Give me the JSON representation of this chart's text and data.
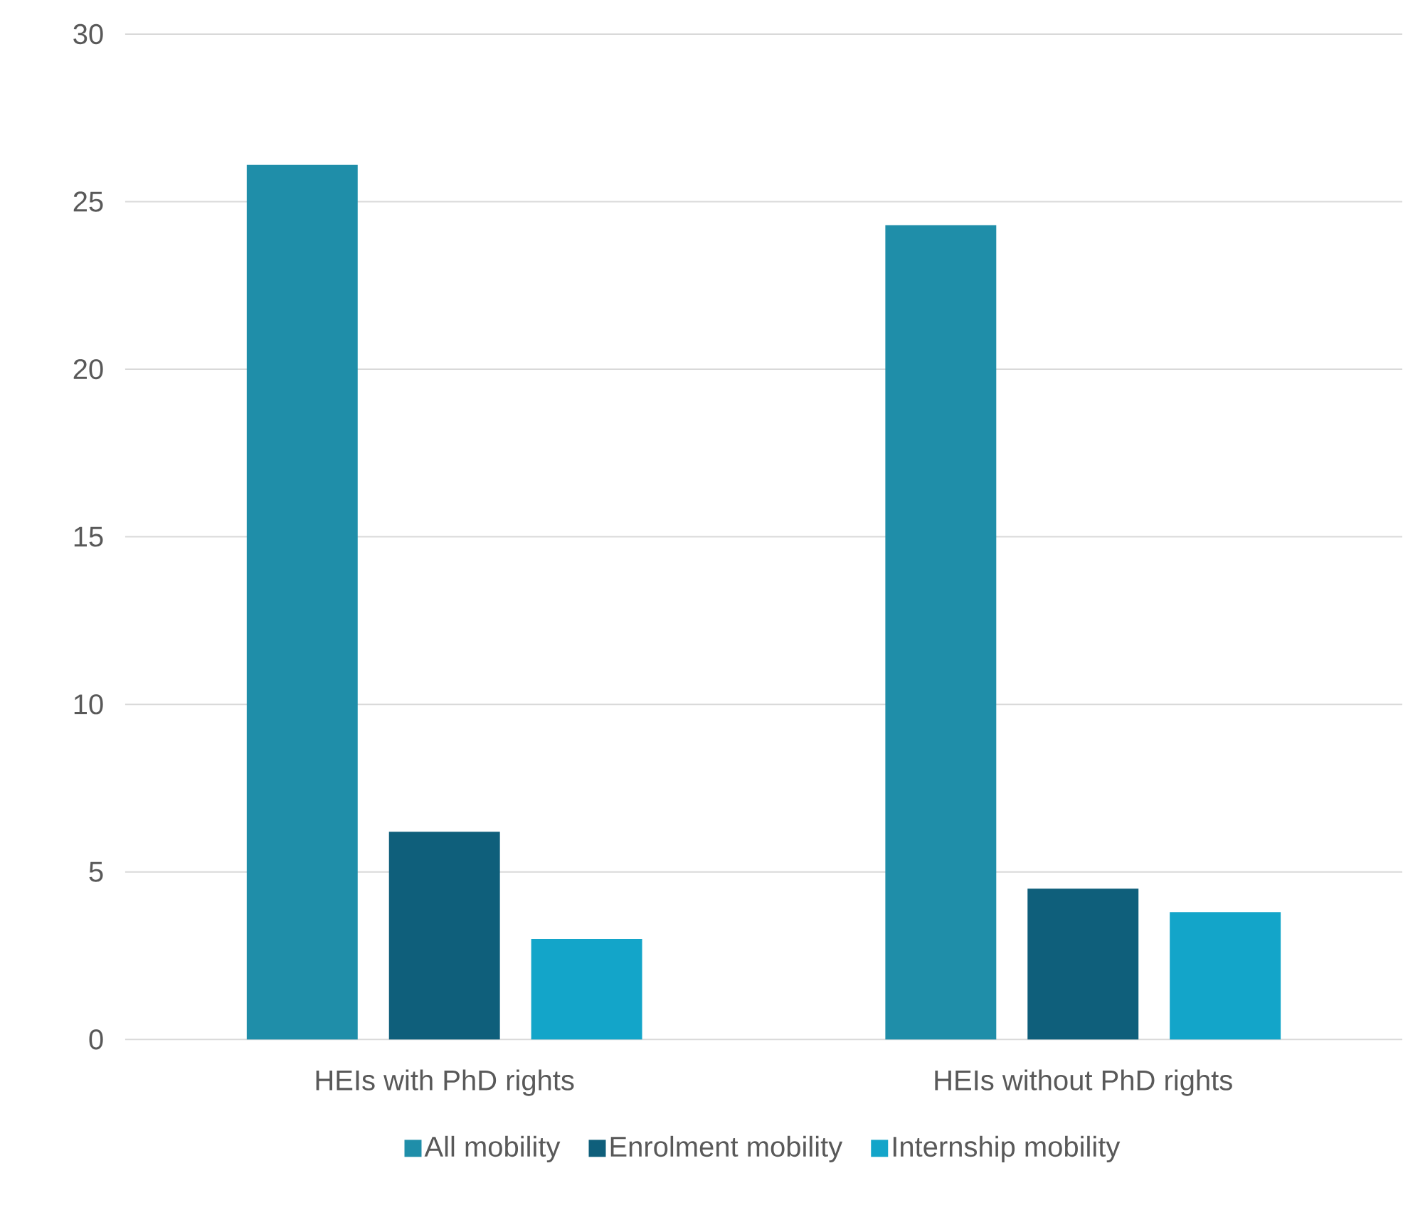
{
  "chart_data": {
    "type": "bar",
    "categories": [
      "HEIs with PhD rights",
      "HEIs without PhD rights"
    ],
    "series": [
      {
        "name": "All mobility",
        "color": "#1f8ea9",
        "values": [
          26.1,
          24.3
        ]
      },
      {
        "name": "Enrolment mobility",
        "color": "#0f5f7b",
        "values": [
          6.2,
          4.5
        ]
      },
      {
        "name": "Internship mobility",
        "color": "#13a5c9",
        "values": [
          3.0,
          3.8
        ]
      }
    ],
    "ylim": [
      0,
      30
    ],
    "yticks": [
      0,
      5,
      10,
      15,
      20,
      25,
      30
    ],
    "grid": "y",
    "legend": "bottom"
  }
}
